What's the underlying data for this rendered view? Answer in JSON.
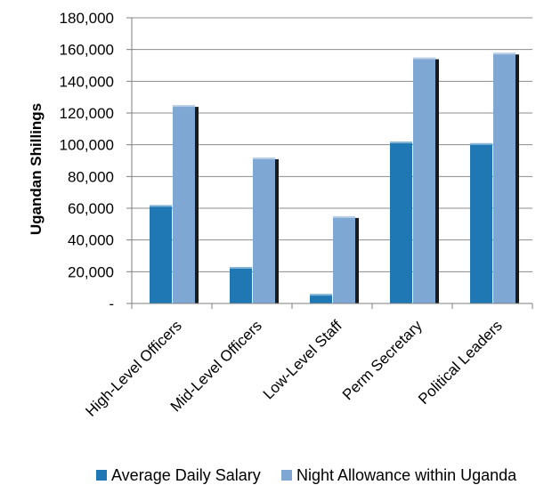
{
  "chart_data": {
    "type": "bar",
    "title": "",
    "xlabel": "",
    "ylabel": "Ugandan Shillings",
    "ylim": [
      0,
      180000
    ],
    "yticks": [
      0,
      20000,
      40000,
      60000,
      80000,
      100000,
      120000,
      140000,
      160000,
      180000
    ],
    "ytick_labels": [
      "-",
      "20,000",
      "40,000",
      "60,000",
      "80,000",
      "100,000",
      "120,000",
      "140,000",
      "160,000",
      "180,000"
    ],
    "categories": [
      "High-Level Officers",
      "Mid-Level Officers",
      "Low-Level Staff",
      "Perm Secretary",
      "Political Leaders"
    ],
    "series": [
      {
        "name": "Average Daily Salary",
        "color": "#1f77b4",
        "values": [
          62000,
          23000,
          6000,
          102000,
          101000
        ]
      },
      {
        "name": "Night Allowance within Uganda",
        "color": "#7fa7d3",
        "values": [
          125000,
          92000,
          55000,
          155000,
          158000
        ]
      }
    ],
    "grid": true,
    "legend_position": "bottom"
  }
}
